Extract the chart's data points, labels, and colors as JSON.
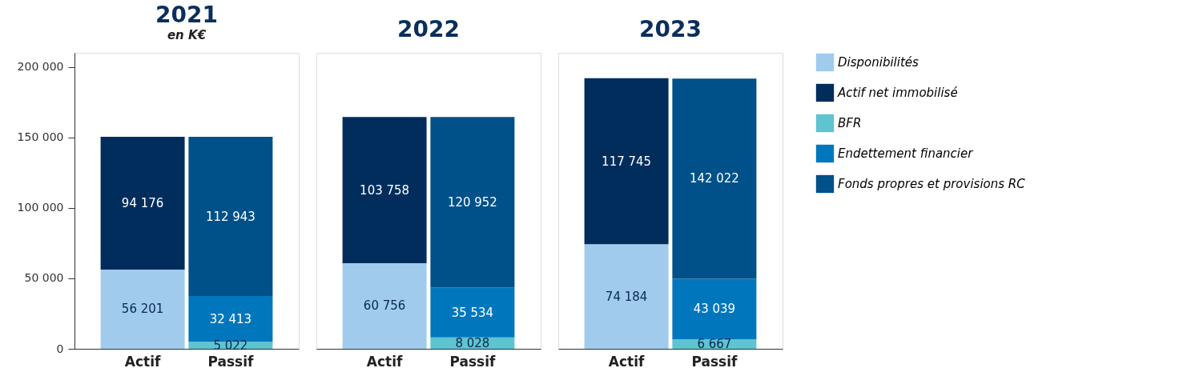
{
  "chart_data": [
    {
      "type": "bar",
      "title": "2021",
      "ylabel": "en K€",
      "categories": [
        "Actif",
        "Passif"
      ],
      "stacked": true,
      "data_labels": true,
      "legend": "right",
      "ylim": [
        0,
        210000
      ],
      "yticks": [
        {
          "value": 0,
          "label": "0"
        },
        {
          "value": 50000,
          "label": "50 000"
        },
        {
          "value": 100000,
          "label": "100 000"
        },
        {
          "value": 150000,
          "label": "150 000"
        },
        {
          "value": 200000,
          "label": "200 000"
        }
      ],
      "series": [
        {
          "name": "Disponibilités",
          "color": "#a0cbed",
          "values": [
            56201,
            null
          ]
        },
        {
          "name": "Actif net immobilisé",
          "color": "#002d5c",
          "values": [
            94176,
            null
          ]
        },
        {
          "name": "BFR",
          "color": "#5ec4d0",
          "values": [
            null,
            5022
          ]
        },
        {
          "name": "Endettement financier",
          "color": "#0077bd",
          "values": [
            null,
            32413
          ]
        },
        {
          "name": "Fonds propres et provisions RC",
          "color": "#00508a",
          "values": [
            null,
            112943
          ]
        }
      ]
    },
    {
      "type": "bar",
      "title": "2022",
      "categories": [
        "Actif",
        "Passif"
      ],
      "stacked": true,
      "data_labels": true,
      "legend": "right",
      "ylim": [
        0,
        210000
      ],
      "tick_labels": "x",
      "series": [
        {
          "name": "Disponibilités",
          "color": "#a0cbed",
          "values": [
            60756,
            null
          ]
        },
        {
          "name": "Actif net immobilisé",
          "color": "#002d5c",
          "values": [
            103758,
            null
          ]
        },
        {
          "name": "BFR",
          "color": "#5ec4d0",
          "values": [
            null,
            8028
          ]
        },
        {
          "name": "Endettement financier",
          "color": "#0077bd",
          "values": [
            null,
            35534
          ]
        },
        {
          "name": "Fonds propres et provisions RC",
          "color": "#00508a",
          "values": [
            null,
            120952
          ]
        }
      ]
    },
    {
      "type": "bar",
      "title": "2023",
      "categories": [
        "Actif",
        "Passif"
      ],
      "stacked": true,
      "data_labels": true,
      "legend": "right",
      "ylim": [
        0,
        210000
      ],
      "tick_labels": "x",
      "series": [
        {
          "name": "Disponibilités",
          "color": "#a0cbed",
          "values": [
            74184,
            null
          ]
        },
        {
          "name": "Actif net immobilisé",
          "color": "#002d5c",
          "values": [
            117745,
            null
          ]
        },
        {
          "name": "BFR",
          "color": "#5ec4d0",
          "values": [
            null,
            6667
          ]
        },
        {
          "name": "Endettement financier",
          "color": "#0077bd",
          "values": [
            null,
            43039
          ]
        },
        {
          "name": "Fonds propres et provisions RC",
          "color": "#00508a",
          "values": [
            null,
            142022
          ]
        }
      ]
    }
  ]
}
